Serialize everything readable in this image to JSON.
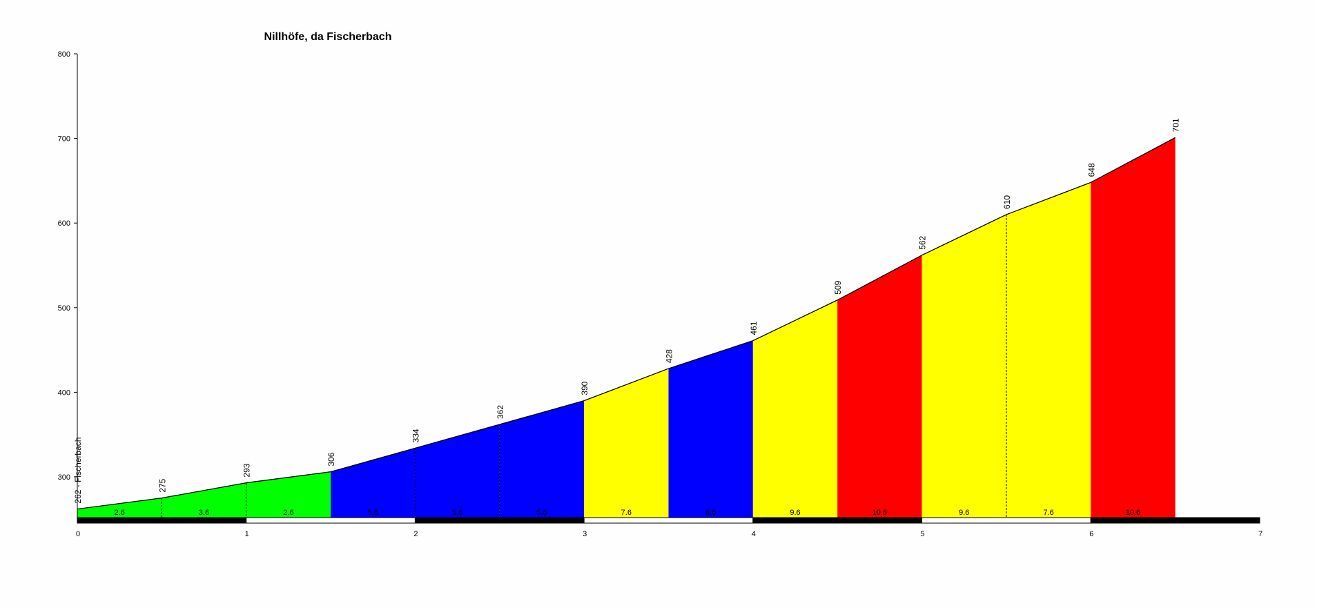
{
  "chart_data": {
    "type": "area",
    "title": "Nillhöfe, da Fischerbach",
    "xlabel": "",
    "ylabel": "",
    "xlim": [
      0,
      7
    ],
    "ylim": [
      248,
      800
    ],
    "x_ticks": [
      "0",
      "1",
      "2",
      "3",
      "4",
      "5",
      "6",
      "7"
    ],
    "y_ticks": [
      "300",
      "400",
      "500",
      "600",
      "700",
      "800"
    ],
    "grid": false,
    "start_label": "262 - Fischerbach",
    "x": [
      0,
      0.5,
      1,
      1.5,
      2,
      2.5,
      3,
      3.5,
      4,
      4.5,
      5,
      5.5,
      6,
      6.5
    ],
    "elevations": [
      262,
      275,
      293,
      306,
      334,
      362,
      390,
      428,
      461,
      509,
      562,
      610,
      648,
      701
    ],
    "point_labels": [
      "262 - Fischerbach",
      "275",
      "293",
      "306",
      "334",
      "362",
      "390",
      "428",
      "461",
      "509",
      "562",
      "610",
      "648",
      "701"
    ],
    "segment_gradients": [
      "2.6",
      "3.6",
      "2.6",
      "5.6",
      "5.6",
      "5.6",
      "7.6",
      "6.6",
      "9.6",
      "10.6",
      "9.6",
      "7.6",
      "10.6"
    ],
    "segment_colors": [
      "#00ff00",
      "#00ff00",
      "#00ff00",
      "#0000ff",
      "#0000ff",
      "#0000ff",
      "#ffff00",
      "#0000ff",
      "#ffff00",
      "#ff0000",
      "#ffff00",
      "#ffff00",
      "#ff0000"
    ]
  }
}
